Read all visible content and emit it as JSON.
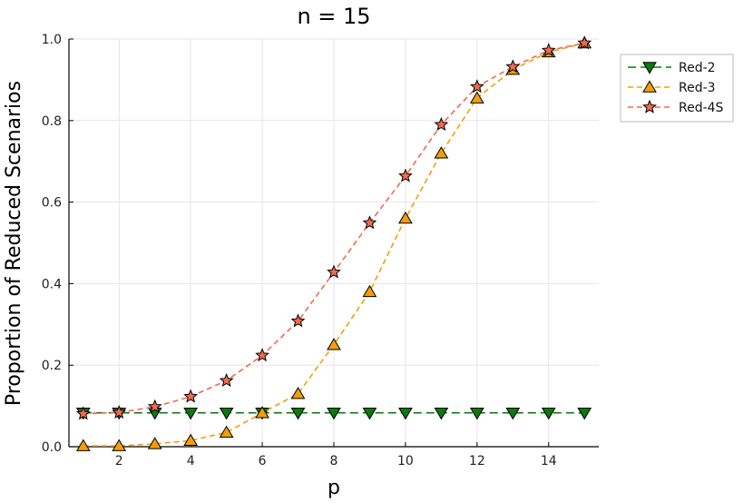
{
  "chart_data": {
    "type": "line",
    "title": "n = 15",
    "xlabel": "p",
    "ylabel": "Proportion of Reduced Scenarios",
    "xlim": [
      0.6,
      15.4
    ],
    "ylim": [
      0,
      1.0
    ],
    "xticks": [
      2,
      4,
      6,
      8,
      10,
      12,
      14
    ],
    "yticks": [
      0.0,
      0.2,
      0.4,
      0.6,
      0.8,
      1.0
    ],
    "ytick_labels": [
      "0.0",
      "0.2",
      "0.4",
      "0.6",
      "0.8",
      "1.0"
    ],
    "grid": true,
    "legend_position": "outside-top-right",
    "x": [
      1,
      2,
      3,
      4,
      5,
      6,
      7,
      8,
      9,
      10,
      11,
      12,
      13,
      14,
      15
    ],
    "series": [
      {
        "name": "Red-2",
        "color": "#0b7a0b",
        "marker": "triangle-down",
        "values": [
          0.083,
          0.083,
          0.083,
          0.083,
          0.083,
          0.083,
          0.083,
          0.083,
          0.083,
          0.083,
          0.083,
          0.083,
          0.083,
          0.083,
          0.083
        ]
      },
      {
        "name": "Red-3",
        "color": "#f29e0b",
        "marker": "triangle-up",
        "values": [
          0.002,
          0.002,
          0.007,
          0.015,
          0.035,
          0.083,
          0.13,
          0.25,
          0.38,
          0.56,
          0.72,
          0.855,
          0.925,
          0.968,
          0.99
        ]
      },
      {
        "name": "Red-4S",
        "color": "#f06a50",
        "marker": "star",
        "values": [
          0.081,
          0.084,
          0.098,
          0.123,
          0.162,
          0.224,
          0.308,
          0.428,
          0.549,
          0.664,
          0.79,
          0.883,
          0.932,
          0.972,
          0.99
        ]
      }
    ]
  }
}
